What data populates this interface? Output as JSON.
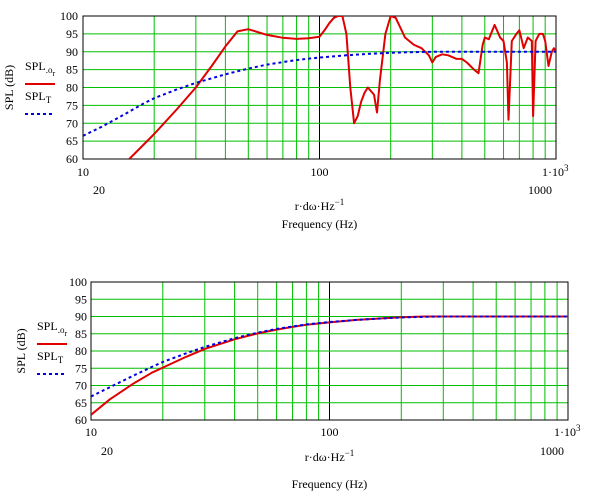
{
  "chart_data": [
    {
      "type": "line",
      "x_scale": "log",
      "xlim": [
        10,
        1000
      ],
      "ylim": [
        60,
        100
      ],
      "xtick_labels_top": [
        "10",
        "100",
        "1·10"
      ],
      "xtick_labels_bottom": [
        "20",
        "1000"
      ],
      "ytick_labels": [
        "60",
        "65",
        "70",
        "75",
        "80",
        "85",
        "90",
        "95",
        "100"
      ],
      "ylabel": "SPL (dB)",
      "xvar_label": "r·dω·Hz",
      "xvar_exp": "−1",
      "xlabel": "Frequency (Hz)",
      "top_tick_exp": "3",
      "legend": [
        {
          "label": "SPL",
          "sub": "o",
          "subsub": "r",
          "style": "solid",
          "color": "#e00000"
        },
        {
          "label": "SPL",
          "sub": "T",
          "subsub": "",
          "style": "dotted",
          "color": "#0000e0"
        }
      ],
      "series": [
        {
          "name": "SPL o r",
          "color": "#e00000",
          "x": [
            15.7,
            20,
            25,
            30,
            35,
            40,
            45,
            50,
            60,
            70,
            80,
            90,
            100,
            105,
            110,
            115,
            120,
            125,
            130,
            135,
            140,
            145,
            150,
            155,
            160,
            170,
            175,
            180,
            190,
            200,
            210,
            230,
            250,
            270,
            290,
            300,
            310,
            330,
            350,
            380,
            400,
            420,
            450,
            470,
            490,
            500,
            520,
            550,
            580,
            600,
            620,
            630,
            650,
            680,
            700,
            730,
            760,
            790,
            800,
            820,
            850,
            880,
            900,
            930,
            960,
            980,
            1000
          ],
          "y": [
            60,
            67,
            74,
            80,
            86,
            91.5,
            95.7,
            96.3,
            94.7,
            93.9,
            93.6,
            93.8,
            94.2,
            96,
            98,
            99.5,
            100,
            100,
            95,
            80,
            70,
            72,
            76,
            78.5,
            80,
            78,
            73,
            82,
            95,
            100,
            99.5,
            94,
            92,
            91,
            89,
            87,
            88.5,
            89.3,
            89,
            88,
            88,
            87,
            85,
            84,
            92,
            94,
            93.5,
            97.5,
            94,
            93,
            87,
            71,
            93,
            95,
            96,
            91,
            94,
            93,
            72,
            93,
            95,
            95,
            93,
            86,
            90,
            91,
            90
          ]
        },
        {
          "name": "SPL T",
          "color": "#0000e0",
          "x": [
            10,
            12,
            15,
            18,
            20,
            25,
            30,
            40,
            50,
            60,
            70,
            80,
            100,
            130,
            160,
            200,
            250,
            300,
            400,
            500,
            700,
            1000
          ],
          "y": [
            66.5,
            69,
            72.5,
            75.5,
            77,
            79.5,
            81.3,
            83.7,
            85.3,
            86.4,
            87.1,
            87.7,
            88.4,
            89,
            89.4,
            89.7,
            89.9,
            90,
            90,
            90,
            90,
            90
          ]
        }
      ]
    },
    {
      "type": "line",
      "x_scale": "log",
      "xlim": [
        10,
        1000
      ],
      "ylim": [
        60,
        100
      ],
      "xtick_labels_top": [
        "10",
        "100",
        "1·10"
      ],
      "xtick_labels_bottom": [
        "20",
        "1000"
      ],
      "ytick_labels": [
        "60",
        "65",
        "70",
        "75",
        "80",
        "85",
        "90",
        "95",
        "100"
      ],
      "ylabel": "SPL (dB)",
      "xvar_label": "r·dω·Hz",
      "xvar_exp": "−1",
      "xlabel": "Frequency (Hz)",
      "top_tick_exp": "3",
      "legend": [
        {
          "label": "SPL",
          "sub": "o",
          "subsub": "r",
          "style": "solid",
          "color": "#e00000"
        },
        {
          "label": "SPL",
          "sub": "T",
          "subsub": "",
          "style": "dotted",
          "color": "#0000e0"
        }
      ],
      "series": [
        {
          "name": "SPL o r",
          "color": "#e00000",
          "x": [
            10,
            12,
            15,
            18,
            20,
            25,
            30,
            40,
            50,
            60,
            70,
            80,
            100,
            130,
            160,
            200,
            250,
            300,
            400,
            500,
            700,
            1000
          ],
          "y": [
            61.5,
            66,
            70.5,
            73.7,
            75.2,
            78.3,
            80.6,
            83.4,
            85.1,
            86.2,
            87,
            87.6,
            88.3,
            89,
            89.4,
            89.8,
            90,
            90,
            90,
            90,
            90,
            90
          ]
        },
        {
          "name": "SPL T",
          "color": "#0000e0",
          "x": [
            10,
            12,
            15,
            18,
            20,
            25,
            30,
            40,
            50,
            60,
            70,
            80,
            100,
            130,
            160,
            200,
            250,
            300,
            400,
            500,
            700,
            1000
          ],
          "y": [
            66.8,
            69.5,
            72.8,
            75.4,
            76.8,
            79.3,
            81.2,
            83.7,
            85.3,
            86.4,
            87.1,
            87.7,
            88.4,
            89,
            89.4,
            89.7,
            89.9,
            90,
            90,
            90,
            90,
            90
          ]
        }
      ]
    }
  ]
}
